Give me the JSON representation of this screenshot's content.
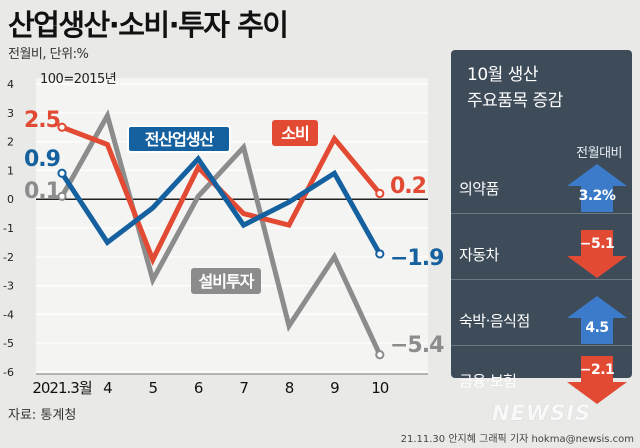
{
  "title": "산업생산·소비·투자 추이",
  "subtitle": "전월비, 단위:%",
  "base_note": "100=2015년",
  "source": "자료: 통계청",
  "credit": "21.11.30 안지혜 그래픽 기자  hokma@newsis.com",
  "watermark": "NEWSIS",
  "chart_data": {
    "type": "line",
    "categories": [
      "2021.3월",
      "4",
      "5",
      "6",
      "7",
      "8",
      "9",
      "10"
    ],
    "ylim": [
      -6,
      4
    ],
    "yticks": [
      4,
      3,
      2,
      1,
      0,
      -1,
      -2,
      -3,
      -4,
      -5,
      -6
    ],
    "series": [
      {
        "name": "소비",
        "color": "#e24a33",
        "values": [
          2.5,
          1.9,
          -2.1,
          1.1,
          -0.5,
          -0.9,
          2.1,
          0.2
        ],
        "start_label": "2.5",
        "end_label": "0.2"
      },
      {
        "name": "전산업생산",
        "color": "#15609e",
        "values": [
          0.9,
          -1.5,
          -0.3,
          1.4,
          -0.9,
          -0.1,
          0.9,
          -1.9
        ],
        "start_label": "0.9",
        "end_label": "−1.9"
      },
      {
        "name": "설비투자",
        "color": "#8c8c8c",
        "values": [
          0.1,
          2.9,
          -2.8,
          0.1,
          1.8,
          -4.4,
          -2.0,
          -5.4
        ],
        "start_label": "0.1",
        "end_label": "−5.4"
      }
    ]
  },
  "panel": {
    "title_line1": "10월 생산",
    "title_line2": "주요품목 증감",
    "column_label": "전월대비",
    "up_color": "#3c7bc9",
    "down_color": "#e24a33",
    "items": [
      {
        "label": "의약품",
        "value": "3.2%",
        "direction": "up"
      },
      {
        "label": "자동차",
        "value": "−5.1",
        "direction": "down"
      },
      {
        "label": "숙박·음식점",
        "value": "4.5",
        "direction": "up"
      },
      {
        "label": "금융·보험",
        "value": "−2.1",
        "direction": "down"
      }
    ]
  }
}
